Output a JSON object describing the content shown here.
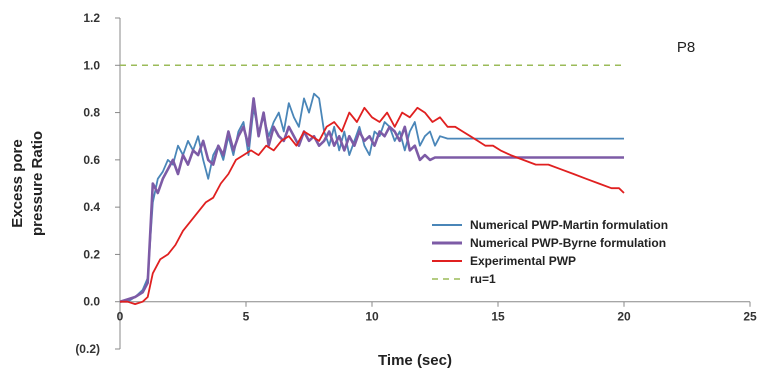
{
  "chart_data": {
    "type": "line",
    "xlabel": "Time (sec)",
    "ylabel_lines": [
      "Excess pore",
      "pressure Ratio"
    ],
    "xlim": [
      0,
      25
    ],
    "ylim": [
      -0.2,
      1.2
    ],
    "x_ticks": [
      "0",
      "5",
      "10",
      "15",
      "20",
      "25"
    ],
    "x_tick_values": [
      0,
      5,
      10,
      15,
      20,
      25
    ],
    "y_ticks": [
      "(0.2)",
      "0.0",
      "0.2",
      "0.4",
      "0.6",
      "0.8",
      "1.0",
      "1.2"
    ],
    "y_tick_values": [
      -0.2,
      0,
      0.2,
      0.4,
      0.6,
      0.8,
      1.0,
      1.2
    ],
    "annotation": "P8",
    "grid": false,
    "legend_position": "bottom-right",
    "series": [
      {
        "name": "Numerical PWP-Martin formulation",
        "color": "#4a86b8",
        "style": "solid",
        "x": [
          0,
          0.3,
          0.6,
          0.9,
          1.1,
          1.3,
          1.5,
          1.7,
          1.9,
          2.1,
          2.3,
          2.5,
          2.7,
          2.9,
          3.1,
          3.3,
          3.5,
          3.7,
          3.9,
          4.1,
          4.3,
          4.5,
          4.7,
          4.9,
          5.1,
          5.3,
          5.5,
          5.7,
          5.9,
          6.1,
          6.3,
          6.5,
          6.7,
          6.9,
          7.1,
          7.3,
          7.5,
          7.7,
          7.9,
          8.1,
          8.3,
          8.5,
          8.7,
          8.9,
          9.1,
          9.3,
          9.5,
          9.7,
          9.9,
          10.1,
          10.3,
          10.5,
          10.7,
          10.9,
          11.1,
          11.3,
          11.5,
          11.7,
          11.9,
          12.1,
          12.3,
          12.5,
          12.7,
          13,
          14,
          15,
          16,
          17,
          18,
          19,
          20
        ],
        "y": [
          0.0,
          0.0,
          0.02,
          0.05,
          0.1,
          0.42,
          0.52,
          0.55,
          0.6,
          0.58,
          0.66,
          0.62,
          0.68,
          0.64,
          0.7,
          0.6,
          0.52,
          0.62,
          0.66,
          0.6,
          0.7,
          0.62,
          0.72,
          0.76,
          0.62,
          0.82,
          0.72,
          0.78,
          0.7,
          0.76,
          0.8,
          0.72,
          0.84,
          0.78,
          0.74,
          0.86,
          0.8,
          0.88,
          0.86,
          0.72,
          0.66,
          0.74,
          0.64,
          0.72,
          0.62,
          0.68,
          0.74,
          0.66,
          0.62,
          0.72,
          0.7,
          0.76,
          0.74,
          0.68,
          0.72,
          0.64,
          0.72,
          0.76,
          0.66,
          0.7,
          0.72,
          0.66,
          0.7,
          0.69,
          0.69,
          0.69,
          0.69,
          0.69,
          0.69,
          0.69,
          0.69
        ]
      },
      {
        "name": "Numerical PWP-Byrne formulation",
        "color": "#7d5ba6",
        "style": "solid",
        "x": [
          0,
          0.3,
          0.6,
          0.9,
          1.1,
          1.3,
          1.5,
          1.7,
          1.9,
          2.1,
          2.3,
          2.5,
          2.7,
          2.9,
          3.1,
          3.3,
          3.5,
          3.7,
          3.9,
          4.1,
          4.3,
          4.5,
          4.7,
          4.9,
          5.1,
          5.3,
          5.5,
          5.7,
          5.9,
          6.1,
          6.3,
          6.5,
          6.7,
          6.9,
          7.1,
          7.3,
          7.5,
          7.7,
          7.9,
          8.1,
          8.3,
          8.5,
          8.7,
          8.9,
          9.1,
          9.3,
          9.5,
          9.7,
          9.9,
          10.1,
          10.3,
          10.5,
          10.7,
          10.9,
          11.1,
          11.3,
          11.5,
          11.7,
          11.9,
          12.1,
          12.3,
          12.5,
          13,
          14,
          15,
          16,
          17,
          18,
          19,
          20
        ],
        "y": [
          0.0,
          0.01,
          0.02,
          0.04,
          0.08,
          0.5,
          0.46,
          0.52,
          0.56,
          0.6,
          0.54,
          0.62,
          0.58,
          0.64,
          0.62,
          0.68,
          0.6,
          0.58,
          0.66,
          0.62,
          0.72,
          0.64,
          0.7,
          0.74,
          0.66,
          0.86,
          0.7,
          0.8,
          0.66,
          0.74,
          0.7,
          0.68,
          0.74,
          0.7,
          0.66,
          0.72,
          0.68,
          0.7,
          0.66,
          0.68,
          0.72,
          0.66,
          0.7,
          0.64,
          0.7,
          0.66,
          0.72,
          0.68,
          0.7,
          0.66,
          0.72,
          0.7,
          0.74,
          0.72,
          0.68,
          0.74,
          0.64,
          0.66,
          0.6,
          0.62,
          0.6,
          0.61,
          0.61,
          0.61,
          0.61,
          0.61,
          0.61,
          0.61,
          0.61,
          0.61
        ]
      },
      {
        "name": "Experimental PWP",
        "color": "#e02020",
        "style": "solid",
        "x": [
          0,
          0.3,
          0.6,
          0.9,
          1.1,
          1.3,
          1.6,
          1.9,
          2.2,
          2.5,
          2.8,
          3.1,
          3.4,
          3.7,
          4.0,
          4.3,
          4.6,
          4.9,
          5.2,
          5.5,
          5.8,
          6.1,
          6.4,
          6.7,
          7.0,
          7.3,
          7.6,
          7.9,
          8.2,
          8.5,
          8.8,
          9.1,
          9.4,
          9.7,
          10.0,
          10.3,
          10.6,
          10.9,
          11.2,
          11.5,
          11.8,
          12.1,
          12.4,
          12.7,
          13.0,
          13.3,
          13.6,
          13.9,
          14.2,
          14.5,
          14.8,
          15.1,
          15.5,
          16.0,
          16.5,
          17.0,
          17.5,
          18.0,
          18.5,
          19.0,
          19.5,
          19.8,
          20.0
        ],
        "y": [
          0.0,
          0.0,
          -0.01,
          0.0,
          0.02,
          0.12,
          0.18,
          0.2,
          0.24,
          0.3,
          0.34,
          0.38,
          0.42,
          0.44,
          0.5,
          0.54,
          0.6,
          0.62,
          0.64,
          0.62,
          0.66,
          0.64,
          0.68,
          0.7,
          0.66,
          0.72,
          0.7,
          0.68,
          0.74,
          0.76,
          0.72,
          0.8,
          0.76,
          0.82,
          0.78,
          0.76,
          0.8,
          0.74,
          0.8,
          0.78,
          0.82,
          0.8,
          0.76,
          0.78,
          0.74,
          0.74,
          0.72,
          0.7,
          0.68,
          0.66,
          0.66,
          0.64,
          0.62,
          0.6,
          0.58,
          0.58,
          0.56,
          0.54,
          0.52,
          0.5,
          0.48,
          0.48,
          0.46
        ]
      },
      {
        "name": "ru=1",
        "color": "#9bbb59",
        "style": "dashed",
        "x": [
          0,
          20
        ],
        "y": [
          1.0,
          1.0
        ]
      }
    ]
  }
}
